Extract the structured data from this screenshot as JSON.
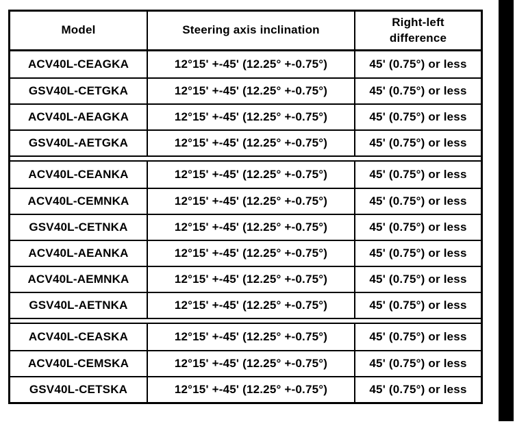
{
  "page": {
    "background_color": "#ffffff",
    "scan_bar_color": "#000000"
  },
  "table": {
    "columns": [
      {
        "key": "model",
        "label": "Model"
      },
      {
        "key": "inclination",
        "label": "Steering axis inclination"
      },
      {
        "key": "difference",
        "label": "Right-left\ndifference"
      }
    ],
    "groups": [
      {
        "rows": [
          {
            "model": "ACV40L-CEAGKA",
            "inclination": "12°15' +-45' (12.25° +-0.75°)",
            "difference": "45' (0.75°) or less"
          },
          {
            "model": "GSV40L-CETGKA",
            "inclination": "12°15' +-45' (12.25° +-0.75°)",
            "difference": "45' (0.75°) or less"
          },
          {
            "model": "ACV40L-AEAGKA",
            "inclination": "12°15' +-45' (12.25° +-0.75°)",
            "difference": "45' (0.75°) or less"
          },
          {
            "model": "GSV40L-AETGKA",
            "inclination": "12°15' +-45' (12.25° +-0.75°)",
            "difference": "45' (0.75°) or less"
          }
        ]
      },
      {
        "rows": [
          {
            "model": "ACV40L-CEANKA",
            "inclination": "12°15' +-45' (12.25° +-0.75°)",
            "difference": "45' (0.75°) or less"
          },
          {
            "model": "ACV40L-CEMNKA",
            "inclination": "12°15' +-45' (12.25° +-0.75°)",
            "difference": "45' (0.75°) or less"
          },
          {
            "model": "GSV40L-CETNKA",
            "inclination": "12°15' +-45' (12.25° +-0.75°)",
            "difference": "45' (0.75°) or less"
          },
          {
            "model": "ACV40L-AEANKA",
            "inclination": "12°15' +-45' (12.25° +-0.75°)",
            "difference": "45' (0.75°) or less"
          },
          {
            "model": "ACV40L-AEMNKA",
            "inclination": "12°15' +-45' (12.25° +-0.75°)",
            "difference": "45' (0.75°) or less"
          },
          {
            "model": "GSV40L-AETNKA",
            "inclination": "12°15' +-45' (12.25° +-0.75°)",
            "difference": "45' (0.75°) or less"
          }
        ]
      },
      {
        "rows": [
          {
            "model": "ACV40L-CEASKA",
            "inclination": "12°15' +-45' (12.25° +-0.75°)",
            "difference": "45' (0.75°) or less"
          },
          {
            "model": "ACV40L-CEMSKA",
            "inclination": "12°15' +-45' (12.25° +-0.75°)",
            "difference": "45' (0.75°) or less"
          },
          {
            "model": "GSV40L-CETSKA",
            "inclination": "12°15' +-45' (12.25° +-0.75°)",
            "difference": "45' (0.75°) or less"
          }
        ]
      }
    ]
  }
}
